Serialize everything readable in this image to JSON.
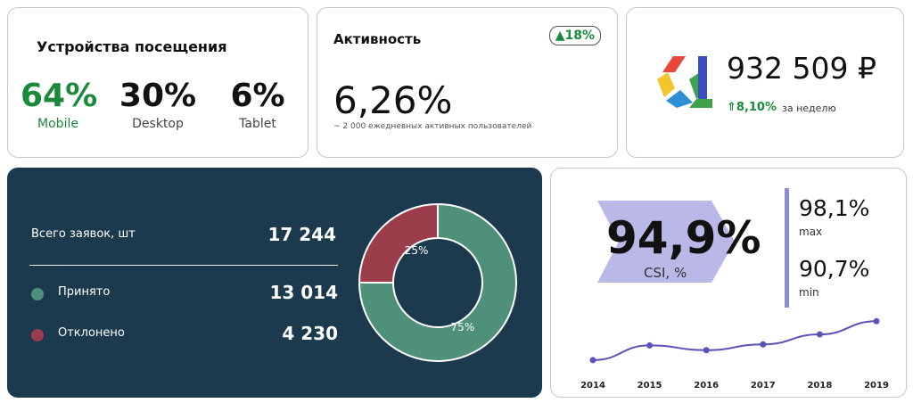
{
  "devices": {
    "title": "Устройства посещения",
    "items": [
      {
        "value": "64%",
        "label": "Mobile"
      },
      {
        "value": "30%",
        "label": "Desktop"
      },
      {
        "value": "6%",
        "label": "Tablet"
      }
    ]
  },
  "activity": {
    "title": "Активность",
    "badge": "▲18%",
    "value": "6,26%",
    "subtitle": "~ 2 000 ежедневных активных пользователей"
  },
  "revenue": {
    "value": "932 509 ₽",
    "delta": "⇑8,10%",
    "period": "за неделю"
  },
  "requests": {
    "total_label": "Всего заявок, шт",
    "total_value": "17 244",
    "rows": [
      {
        "label": "Принято",
        "value": "13 014",
        "color": "#4e9079"
      },
      {
        "label": "Отклонено",
        "value": "4 230",
        "color": "#9b3d4b"
      }
    ]
  },
  "csi": {
    "value": "94,9%",
    "label": "CSI, %",
    "max_value": "98,1%",
    "max_label": "max",
    "min_value": "90,7%",
    "min_label": "min",
    "accent": "#8d8cd3"
  },
  "chart_data": [
    {
      "type": "pie",
      "categories": [
        "Принято",
        "Отклонено"
      ],
      "values": [
        75,
        25
      ],
      "labels": [
        "75%",
        "25%"
      ],
      "colors": [
        "#4e9079",
        "#9b3d4b"
      ]
    },
    {
      "type": "line",
      "x": [
        "2014",
        "2015",
        "2016",
        "2017",
        "2018",
        "2019"
      ],
      "values": [
        90.7,
        93.5,
        92.6,
        93.7,
        95.6,
        98.1
      ],
      "ylim": [
        89.5,
        99
      ],
      "color": "#5a52b8"
    }
  ]
}
